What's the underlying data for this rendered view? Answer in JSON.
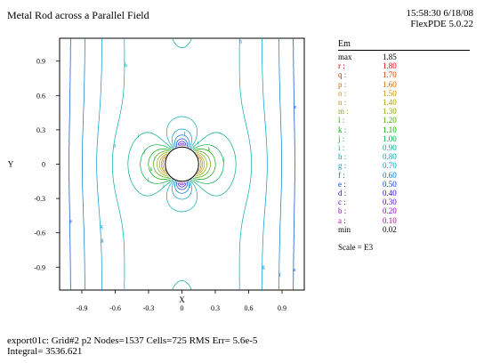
{
  "header": {
    "title": "Metal Rod across a Parallel Field",
    "time": "15:58:30 6/18/08",
    "version": "FlexPDE 5.0.22"
  },
  "footer": {
    "line1": "export01c:  Grid#2  p2  Nodes=1537 Cells=725 RMS Err= 5.6e-5",
    "line2": "Integral=  3536.621"
  },
  "legend": {
    "title": "Em",
    "scale": "Scale = E3",
    "rows": [
      {
        "key": "max",
        "value": "1.85",
        "color": "#000000"
      },
      {
        "key": "r :",
        "value": "1.80",
        "color": "#cc0000"
      },
      {
        "key": "q :",
        "value": "1.70",
        "color": "#cc3300"
      },
      {
        "key": "p :",
        "value": "1.60",
        "color": "#cc6600"
      },
      {
        "key": "o :",
        "value": "1.50",
        "color": "#cc8800"
      },
      {
        "key": "n :",
        "value": "1.40",
        "color": "#b0a000"
      },
      {
        "key": "m :",
        "value": "1.30",
        "color": "#88aa00"
      },
      {
        "key": "l :",
        "value": "1.20",
        "color": "#44aa00"
      },
      {
        "key": "k :",
        "value": "1.10",
        "color": "#00aa00"
      },
      {
        "key": "j :",
        "value": "1.00",
        "color": "#00aa44"
      },
      {
        "key": "i :",
        "value": "0.90",
        "color": "#00aa88"
      },
      {
        "key": "h :",
        "value": "0.80",
        "color": "#00aaaa"
      },
      {
        "key": "g :",
        "value": "0.70",
        "color": "#0099cc"
      },
      {
        "key": "f :",
        "value": "0.60",
        "color": "#0077cc"
      },
      {
        "key": "e :",
        "value": "0.50",
        "color": "#0044cc"
      },
      {
        "key": "d :",
        "value": "0.40",
        "color": "#2200cc"
      },
      {
        "key": "c :",
        "value": "0.30",
        "color": "#5500cc"
      },
      {
        "key": "b :",
        "value": "0.20",
        "color": "#8800cc"
      },
      {
        "key": "a :",
        "value": "0.10",
        "color": "#aa00aa"
      },
      {
        "key": "min",
        "value": "0.02",
        "color": "#000000"
      }
    ]
  },
  "chart_data": {
    "type": "contour",
    "title": "Metal Rod across a Parallel Field",
    "xlabel": "X",
    "ylabel": "Y",
    "xlim": [
      -1.1,
      1.1
    ],
    "ylim": [
      -1.1,
      1.1
    ],
    "xticks": [
      "-0.9",
      "-0.6",
      "-0.3",
      "0",
      "0.3",
      "0.6",
      "0.9"
    ],
    "xtick_values": [
      -0.9,
      -0.6,
      -0.3,
      0,
      0.3,
      0.6,
      0.9
    ],
    "yticks": [
      "0.9",
      "0.6",
      "0.3",
      "0",
      "-0.3",
      "-0.6",
      "-0.9"
    ],
    "ytick_values": [
      0.9,
      0.6,
      0.3,
      0,
      -0.3,
      -0.6,
      -0.9
    ],
    "rod_radius": 0.15,
    "field": "Em",
    "max": 1.85,
    "min": 0.02,
    "scale": "E3",
    "levels": [
      0.1,
      0.2,
      0.3,
      0.4,
      0.5,
      0.6,
      0.7,
      0.8,
      0.9,
      1.0,
      1.1,
      1.2,
      1.3,
      1.4,
      1.5,
      1.6,
      1.7,
      1.8
    ],
    "level_keys": [
      "a",
      "b",
      "c",
      "d",
      "e",
      "f",
      "g",
      "h",
      "i",
      "j",
      "k",
      "l",
      "m",
      "n",
      "o",
      "p",
      "q",
      "r"
    ]
  }
}
